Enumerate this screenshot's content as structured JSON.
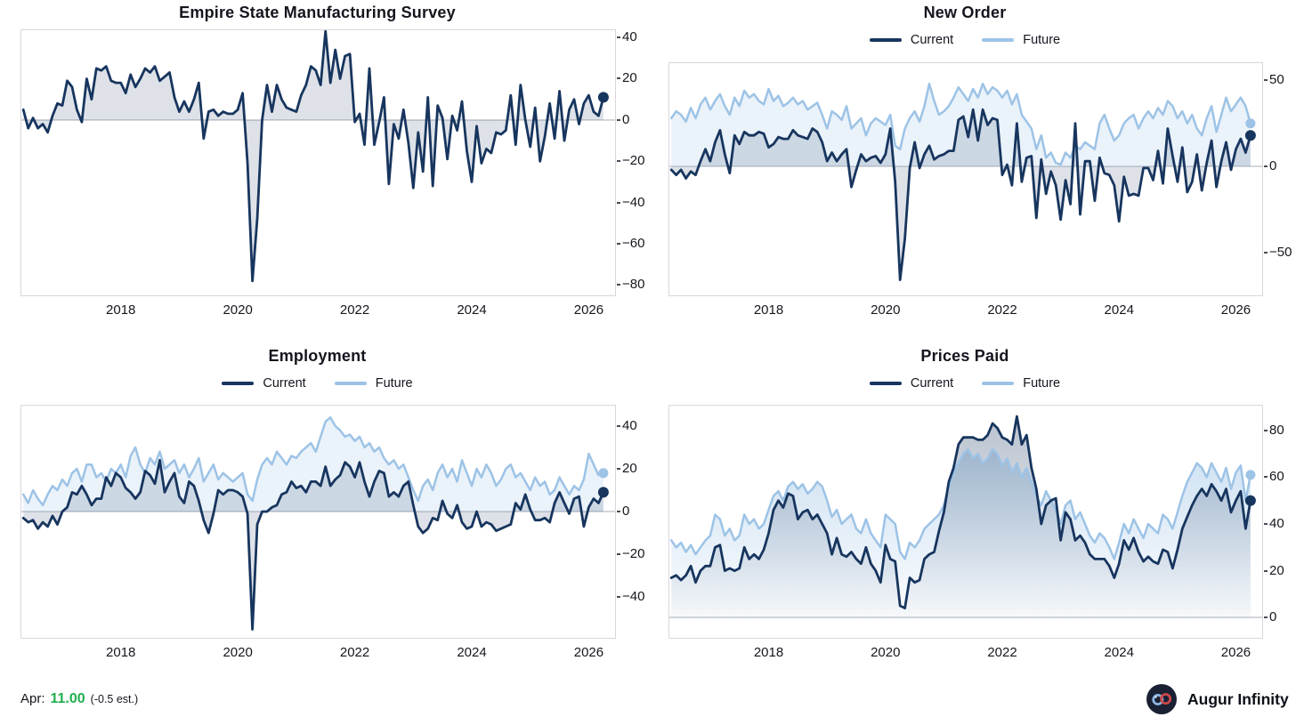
{
  "footer": {
    "label": "Apr:",
    "value": "11.00",
    "estimate": "(-0.5 est.)",
    "value_color": "#1fae4d",
    "brand": "Augur Infinity"
  },
  "colors": {
    "current": "#17355e",
    "future": "#9dc3e6",
    "zero_line": "#c8cbd2",
    "frame": "#d7d7db",
    "text": "#15151f",
    "logo_bg": "#1b2134",
    "logo_left_loop": "#8fb6e4",
    "logo_right_loop": "#cd4a4a"
  },
  "chart_data": [
    {
      "type": "line",
      "title": "Empire State Manufacturing Survey",
      "x_start": 2016.3333,
      "x_step": 0.0833333,
      "xlim": [
        2016.3,
        2026.45
      ],
      "ylim": [
        -85,
        43.5
      ],
      "xticks": [
        2018,
        2020,
        2022,
        2024,
        2026
      ],
      "yticks": [
        40,
        20,
        0,
        -20,
        -40,
        -60,
        -80
      ],
      "fill_style": "flat",
      "end_marker": true,
      "grid": false,
      "legend_position": "none",
      "series": [
        {
          "name": "Current",
          "color": "#17355e",
          "width": 2.8,
          "fill": "rgba(23,53,94,0.14)",
          "fill_gradient": [
            "rgba(23,53,94,0.30)",
            "rgba(23,53,94,0.02)"
          ],
          "values": [
            5,
            -4,
            1,
            -4,
            -2,
            -6,
            2,
            8,
            7,
            19,
            16,
            5,
            -1,
            20,
            10,
            25,
            24,
            26,
            19,
            18,
            18,
            13,
            22,
            16,
            20,
            25,
            23,
            26,
            19,
            21,
            23,
            11,
            4,
            9,
            4,
            10,
            18,
            -9,
            4,
            5,
            2,
            4,
            3,
            3,
            5,
            13,
            -21,
            -78,
            -48,
            0,
            17,
            4,
            17,
            10,
            6,
            5,
            4,
            12,
            17,
            26,
            24,
            17,
            43,
            18,
            34,
            20,
            31,
            32,
            -1,
            3,
            -12,
            25,
            -12,
            -1,
            11,
            -31,
            -2,
            -9,
            5,
            -11,
            -33,
            -6,
            -25,
            11,
            -32,
            7,
            1,
            -19,
            2,
            -5,
            9,
            -15,
            -30,
            -3,
            -21,
            -14,
            -16,
            -6,
            -7,
            -5,
            12,
            -12,
            17,
            0,
            -13,
            6,
            -20,
            -8,
            8,
            -9,
            14,
            -10,
            5,
            10,
            -2,
            8,
            12,
            4,
            2,
            11
          ]
        }
      ]
    },
    {
      "type": "line",
      "title": "New Order",
      "x_start": 2016.3333,
      "x_step": 0.0833333,
      "xlim": [
        2016.3,
        2026.45
      ],
      "ylim": [
        -75,
        60
      ],
      "xticks": [
        2018,
        2020,
        2022,
        2024,
        2026
      ],
      "yticks": [
        50,
        0,
        -50
      ],
      "fill_style": "flat",
      "end_marker": true,
      "grid": false,
      "legend_position": "top",
      "series": [
        {
          "name": "Current",
          "color": "#17355e",
          "width": 2.8,
          "fill": "rgba(23,53,94,0.14)",
          "fill_gradient": [
            "rgba(23,53,94,0.30)",
            "rgba(23,53,94,0.02)"
          ],
          "values": [
            -2,
            -5,
            -2,
            -7,
            -3,
            -5,
            3,
            10,
            3,
            14,
            21,
            7,
            -4,
            18,
            13,
            20,
            18,
            18,
            20,
            19,
            11,
            13,
            17,
            16,
            16,
            21,
            18,
            17,
            16,
            22,
            20,
            14,
            3,
            8,
            3,
            7,
            10,
            -12,
            -2,
            7,
            3,
            5,
            6,
            2,
            7,
            22,
            -9,
            -66,
            -42,
            -1,
            14,
            -1,
            7,
            12,
            4,
            6,
            7,
            9,
            9,
            27,
            29,
            17,
            33,
            15,
            33,
            24,
            28,
            27,
            -5,
            1,
            -11,
            25,
            -9,
            5,
            6,
            -30,
            4,
            -16,
            -3,
            -11,
            -31,
            -8,
            -22,
            25,
            -28,
            3,
            3,
            -20,
            5,
            -4,
            -5,
            -11,
            -32,
            -6,
            -17,
            -16,
            -17,
            -1,
            -1,
            -8,
            9,
            -10,
            22,
            6,
            -9,
            11,
            -15,
            -9,
            7,
            -14,
            2,
            15,
            -12,
            3,
            14,
            -2,
            10,
            16,
            8,
            18
          ]
        },
        {
          "name": "Future",
          "color": "#9dc3e6",
          "width": 2.5,
          "fill": "rgba(157,195,230,0.22)",
          "fill_gradient": [
            "rgba(157,195,230,0.50)",
            "rgba(157,195,230,0.04)"
          ],
          "values": [
            28,
            32,
            30,
            26,
            34,
            28,
            36,
            40,
            33,
            38,
            42,
            35,
            30,
            40,
            35,
            44,
            40,
            42,
            38,
            36,
            45,
            38,
            41,
            35,
            37,
            40,
            36,
            38,
            33,
            35,
            37,
            30,
            22,
            32,
            30,
            27,
            35,
            22,
            25,
            28,
            18,
            25,
            28,
            26,
            24,
            30,
            12,
            10,
            22,
            28,
            32,
            26,
            35,
            48,
            38,
            30,
            32,
            35,
            40,
            46,
            42,
            38,
            45,
            40,
            48,
            42,
            46,
            44,
            40,
            44,
            36,
            42,
            30,
            26,
            22,
            10,
            18,
            5,
            8,
            2,
            1,
            8,
            5,
            12,
            10,
            14,
            12,
            10,
            25,
            30,
            22,
            15,
            18,
            25,
            28,
            30,
            22,
            28,
            32,
            28,
            34,
            30,
            38,
            35,
            28,
            32,
            25,
            30,
            22,
            18,
            28,
            35,
            20,
            30,
            40,
            32,
            36,
            40,
            35,
            25
          ]
        }
      ]
    },
    {
      "type": "line",
      "title": "Employment",
      "x_start": 2016.3333,
      "x_step": 0.0833333,
      "xlim": [
        2016.3,
        2026.45
      ],
      "ylim": [
        -59,
        49.5
      ],
      "xticks": [
        2018,
        2020,
        2022,
        2024,
        2026
      ],
      "yticks": [
        40,
        20,
        0,
        -20,
        -40
      ],
      "fill_style": "flat",
      "end_marker": true,
      "grid": false,
      "legend_position": "top",
      "series": [
        {
          "name": "Current",
          "color": "#17355e",
          "width": 2.8,
          "fill": "rgba(23,53,94,0.14)",
          "fill_gradient": [
            "rgba(23,53,94,0.30)",
            "rgba(23,53,94,0.02)"
          ],
          "values": [
            -3,
            -5,
            -4,
            -8,
            -5,
            -7,
            -2,
            -6,
            0,
            2,
            9,
            8,
            12,
            8,
            3,
            6,
            6,
            16,
            12,
            18,
            16,
            11,
            9,
            6,
            9,
            19,
            17,
            13,
            24,
            9,
            14,
            18,
            7,
            4,
            14,
            12,
            5,
            -4,
            -10,
            -1,
            10,
            8,
            10,
            10,
            9,
            7,
            -1,
            -55,
            -6,
            0,
            0,
            2,
            3,
            8,
            9,
            14,
            11,
            12,
            9,
            14,
            14,
            12,
            21,
            12,
            15,
            17,
            23,
            21,
            16,
            23,
            14,
            7,
            14,
            19,
            18,
            7,
            9,
            7,
            12,
            14,
            3,
            -7,
            -10,
            -8,
            -3,
            -4,
            5,
            -1,
            -3,
            3,
            -5,
            -8,
            -7,
            0,
            -7,
            -5,
            -6,
            -9,
            -8,
            -7,
            -6,
            4,
            1,
            8,
            1,
            -4,
            -4,
            -3,
            -5,
            4,
            9,
            4,
            -1,
            6,
            7,
            -7,
            2,
            6,
            4,
            9
          ]
        },
        {
          "name": "Future",
          "color": "#9dc3e6",
          "width": 2.5,
          "fill": "rgba(157,195,230,0.22)",
          "fill_gradient": [
            "rgba(157,195,230,0.50)",
            "rgba(157,195,230,0.04)"
          ],
          "values": [
            8,
            4,
            10,
            6,
            3,
            8,
            12,
            10,
            15,
            12,
            18,
            20,
            14,
            22,
            22,
            16,
            18,
            14,
            20,
            18,
            22,
            16,
            26,
            30,
            22,
            18,
            25,
            22,
            28,
            20,
            22,
            24,
            18,
            22,
            16,
            20,
            25,
            14,
            18,
            22,
            15,
            18,
            16,
            14,
            16,
            18,
            8,
            5,
            15,
            22,
            25,
            22,
            28,
            25,
            22,
            26,
            25,
            28,
            30,
            32,
            28,
            35,
            42,
            44,
            40,
            38,
            35,
            36,
            33,
            35,
            30,
            32,
            28,
            30,
            25,
            22,
            24,
            20,
            22,
            16,
            10,
            5,
            12,
            15,
            10,
            18,
            22,
            16,
            20,
            14,
            24,
            18,
            12,
            20,
            16,
            22,
            18,
            12,
            15,
            20,
            22,
            16,
            18,
            14,
            10,
            16,
            12,
            14,
            8,
            10,
            16,
            12,
            8,
            12,
            10,
            15,
            27,
            22,
            17,
            18
          ]
        }
      ]
    },
    {
      "type": "line",
      "title": "Prices Paid",
      "x_start": 2016.3333,
      "x_step": 0.0833333,
      "xlim": [
        2016.3,
        2026.45
      ],
      "ylim": [
        -8.7,
        90.6
      ],
      "xticks": [
        2018,
        2020,
        2022,
        2024,
        2026
      ],
      "yticks": [
        80,
        60,
        40,
        20,
        0
      ],
      "fill_style": "gradient",
      "end_marker": true,
      "grid": false,
      "legend_position": "top",
      "series": [
        {
          "name": "Current",
          "color": "#17355e",
          "width": 2.8,
          "fill": "rgba(23,53,94,0.14)",
          "fill_gradient": [
            "rgba(23,53,94,0.30)",
            "rgba(23,53,94,0.02)"
          ],
          "values": [
            17,
            18,
            16,
            18,
            22,
            15,
            20,
            22,
            22,
            30,
            31,
            20,
            21,
            20,
            21,
            30,
            25,
            27,
            25,
            29,
            36,
            46,
            50,
            47,
            53,
            52,
            42,
            45,
            46,
            42,
            44,
            40,
            36,
            27,
            34,
            27,
            26,
            28,
            25,
            23,
            30,
            23,
            20,
            15,
            31,
            25,
            24,
            5,
            4,
            17,
            15,
            16,
            25,
            27,
            28,
            37,
            45,
            58,
            64,
            74,
            77,
            77,
            77,
            76,
            76,
            78,
            83,
            81,
            77,
            76,
            74,
            86,
            74,
            78,
            64,
            55,
            40,
            48,
            50,
            51,
            33,
            45,
            42,
            33,
            35,
            32,
            27,
            25,
            25,
            25,
            22,
            17,
            23,
            33,
            29,
            34,
            28,
            24,
            26,
            24,
            23,
            29,
            28,
            21,
            29,
            38,
            43,
            48,
            52,
            55,
            52,
            57,
            54,
            50,
            55,
            45,
            50,
            54,
            38,
            50
          ]
        },
        {
          "name": "Future",
          "color": "#9dc3e6",
          "width": 2.5,
          "fill": "rgba(157,195,230,0.22)",
          "fill_gradient": [
            "rgba(157,195,230,0.50)",
            "rgba(157,195,230,0.04)"
          ],
          "values": [
            33,
            30,
            32,
            28,
            31,
            27,
            30,
            33,
            35,
            44,
            42,
            35,
            38,
            33,
            35,
            44,
            40,
            42,
            38,
            40,
            46,
            52,
            54,
            50,
            56,
            58,
            55,
            57,
            53,
            55,
            58,
            56,
            50,
            43,
            46,
            40,
            42,
            44,
            38,
            36,
            42,
            36,
            33,
            30,
            44,
            42,
            40,
            28,
            25,
            32,
            30,
            33,
            38,
            40,
            42,
            44,
            48,
            56,
            62,
            66,
            70,
            72,
            68,
            70,
            66,
            68,
            72,
            70,
            65,
            68,
            62,
            66,
            60,
            64,
            58,
            52,
            48,
            54,
            50,
            46,
            40,
            48,
            50,
            42,
            45,
            40,
            35,
            32,
            36,
            34,
            30,
            25,
            32,
            40,
            36,
            42,
            38,
            34,
            40,
            38,
            36,
            44,
            42,
            38,
            45,
            52,
            58,
            62,
            66,
            64,
            60,
            66,
            62,
            58,
            64,
            55,
            62,
            65,
            50,
            61
          ]
        }
      ]
    }
  ]
}
